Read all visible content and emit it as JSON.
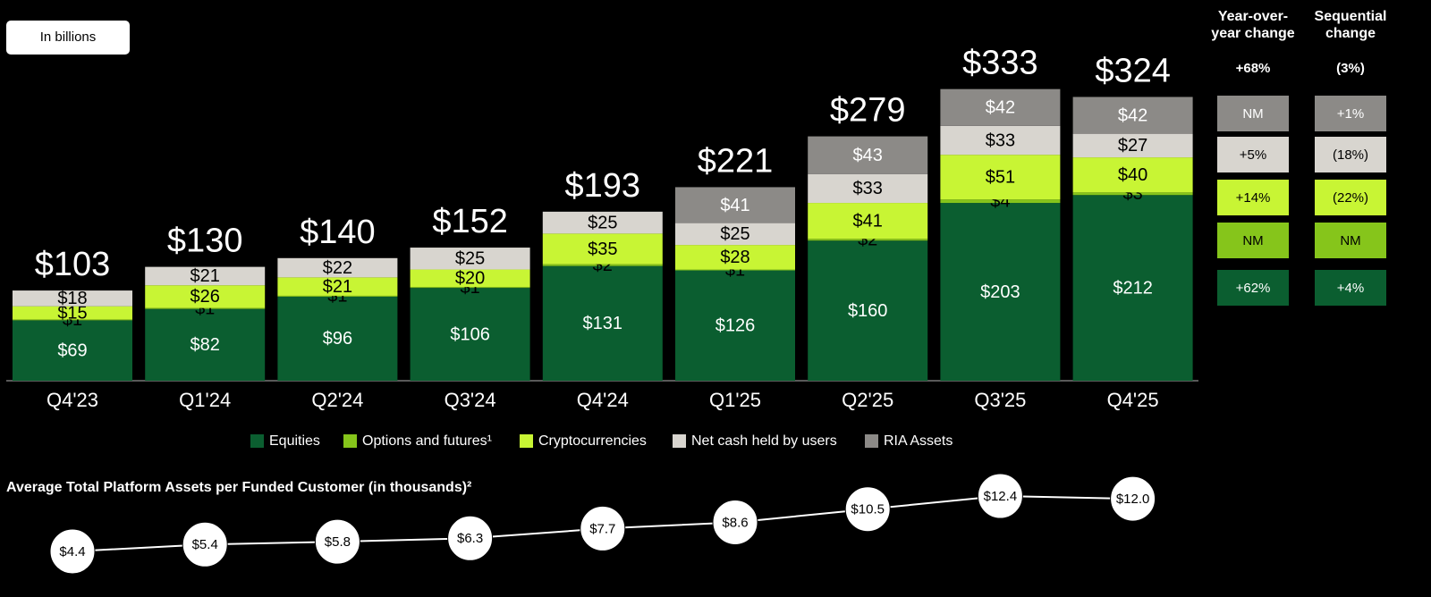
{
  "chart_data": [
    {
      "type": "bar",
      "stacked": true,
      "unit_label": "In billions",
      "categories": [
        "Q4'23",
        "Q1'24",
        "Q2'24",
        "Q3'24",
        "Q4'24",
        "Q1'25",
        "Q2'25",
        "Q3'25",
        "Q4'25"
      ],
      "series": [
        {
          "name": "Equities",
          "color": "#0b5e30",
          "values": [
            69,
            82,
            96,
            106,
            131,
            126,
            160,
            203,
            212
          ],
          "value_labels": [
            "$69",
            "$82",
            "$96",
            "$106",
            "$131",
            "$126",
            "$160",
            "$203",
            "$212"
          ]
        },
        {
          "name": "Options and futures¹",
          "color": "#86c51b",
          "values": [
            1,
            1,
            1,
            1,
            2,
            1,
            2,
            4,
            3
          ],
          "value_labels": [
            "$1",
            "$1",
            "$1",
            "$1",
            "$2",
            "$1",
            "$2",
            "$4",
            "$3"
          ]
        },
        {
          "name": "Cryptocurrencies",
          "color": "#c8f534",
          "values": [
            15,
            26,
            21,
            20,
            35,
            28,
            41,
            51,
            40
          ],
          "value_labels": [
            "$15",
            "$26",
            "$21",
            "$20",
            "$35",
            "$28",
            "$41",
            "$51",
            "$40"
          ]
        },
        {
          "name": "Net cash held by users",
          "color": "#d8d5cf",
          "values": [
            18,
            21,
            22,
            25,
            25,
            25,
            33,
            33,
            27
          ],
          "value_labels": [
            "$18",
            "$21",
            "$22",
            "$25",
            "$25",
            "$25",
            "$33",
            "$33",
            "$27"
          ]
        },
        {
          "name": "RIA Assets",
          "color": "#8c8a87",
          "values": [
            null,
            null,
            null,
            null,
            null,
            41,
            43,
            42,
            42
          ],
          "value_labels": [
            null,
            null,
            null,
            null,
            null,
            "$41",
            "$43",
            "$42",
            "$42"
          ]
        }
      ],
      "totals": {
        "values": [
          103,
          130,
          140,
          152,
          193,
          221,
          279,
          333,
          324
        ],
        "value_labels": [
          "$103",
          "$130",
          "$140",
          "$152",
          "$193",
          "$221",
          "$279",
          "$333",
          "$324"
        ]
      },
      "legend": "bottom"
    },
    {
      "type": "line",
      "title": "Average Total Platform Assets per Funded Customer (in thousands)²",
      "color": "#ffffff",
      "values": [
        4.4,
        5.4,
        5.8,
        6.3,
        7.7,
        8.6,
        10.5,
        12.4,
        12.0
      ],
      "value_labels": [
        "$4.4",
        "$5.4",
        "$5.8",
        "$6.3",
        "$7.7",
        "$8.6",
        "$10.5",
        "$12.4",
        "$12.0"
      ]
    }
  ],
  "change_table": {
    "columns": [
      {
        "header": [
          "Year-over-",
          "year change"
        ],
        "total": "+68%",
        "rows": [
          "NM",
          "+5%",
          "+14%",
          "NM",
          "+62%"
        ]
      },
      {
        "header": [
          "Sequential",
          "change"
        ],
        "total": "(3%)",
        "rows": [
          "+1%",
          "(18%)",
          "(22%)",
          "NM",
          "+4%"
        ]
      }
    ]
  }
}
